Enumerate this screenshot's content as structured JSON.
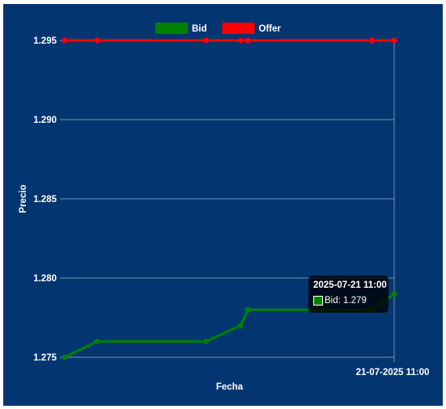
{
  "chart_data": {
    "type": "line",
    "x": [
      "",
      "",
      "",
      "",
      "",
      "",
      "",
      "21-07-2025 11:00"
    ],
    "series": [
      {
        "name": "Bid",
        "color": "#008000",
        "values": [
          1.275,
          1.276,
          1.276,
          1.277,
          1.278,
          1.278,
          1.278,
          1.279
        ]
      },
      {
        "name": "Offer",
        "color": "#ff0000",
        "values": [
          1.295,
          1.295,
          1.295,
          1.295,
          1.295,
          1.295,
          1.295,
          1.295
        ]
      }
    ],
    "x_positions": [
      0,
      0.098,
      0.429,
      0.534,
      0.556,
      0.556,
      0.932,
      1.0
    ],
    "xlabel": "Fecha",
    "ylabel": "Precio",
    "yticks": [
      "1.275",
      "1.280",
      "1.285",
      "1.290",
      "1.295"
    ],
    "ylim": [
      1.275,
      1.295
    ],
    "grid": true,
    "legend": "top-center",
    "background_color": "#033671",
    "tooltip": {
      "title": "2025-07-21 11:00",
      "body": "Bid: 1.279"
    }
  }
}
